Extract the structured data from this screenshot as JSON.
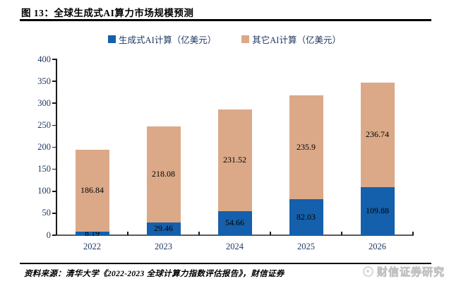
{
  "header": {
    "title": "图 13：全球生成式AI算力市场规模预测"
  },
  "chart_data": {
    "type": "bar",
    "stacked": true,
    "title": "全球生成式AI算力市场规模预测",
    "categories": [
      "2022",
      "2023",
      "2024",
      "2025",
      "2026"
    ],
    "series": [
      {
        "name": "生成式AI计算（亿美元）",
        "color": "#1460AC",
        "values": [
          8.19,
          29.46,
          54.66,
          82.03,
          109.88
        ]
      },
      {
        "name": "其它AI计算（亿美元）",
        "color": "#DBA988",
        "values": [
          186.84,
          218.08,
          231.52,
          235.9,
          236.74
        ]
      }
    ],
    "ylim": [
      0,
      400
    ],
    "ytick_step": 50,
    "yticks": [
      0,
      50,
      100,
      150,
      200,
      250,
      300,
      350,
      400
    ],
    "legend_position": "top",
    "grid": false,
    "data_labels": true
  },
  "footer": {
    "source": "资料来源：清华大学《2022-2023 全球计算力指数评估报告》，财信证券",
    "watermark": "财信证券研究"
  },
  "colors": {
    "generative_blue": "#1460AC",
    "other_tan": "#DBA988",
    "axis_label": "#1F3864",
    "data_label": "#000000",
    "axis_line": "#595959",
    "title_rule": "#000000",
    "watermark": "#D6D6D6"
  }
}
